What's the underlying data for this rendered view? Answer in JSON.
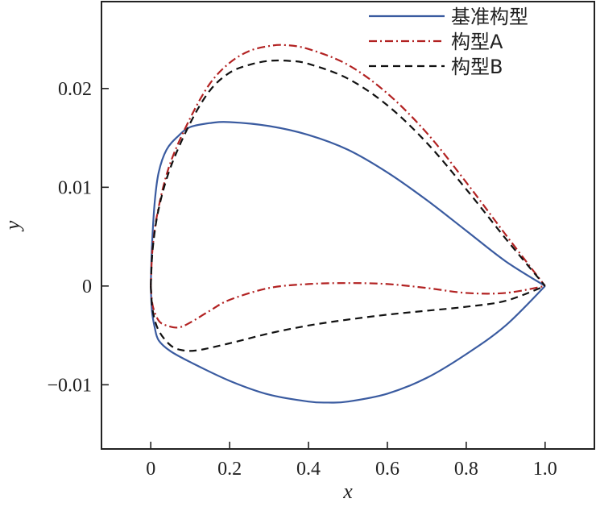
{
  "chart_data": {
    "type": "line",
    "title": "",
    "xlabel": "x",
    "ylabel": "y",
    "xlim": [
      -0.125,
      1.125
    ],
    "ylim": [
      -0.0165,
      0.0288
    ],
    "xticks": [
      0,
      0.2,
      0.4,
      0.6,
      0.8,
      1.0
    ],
    "xtick_labels": [
      "0",
      "0.2",
      "0.4",
      "0.6",
      "0.8",
      "1.0"
    ],
    "yticks": [
      -0.01,
      0,
      0.01,
      0.02
    ],
    "ytick_labels": [
      "−0.01",
      "0",
      "0.01",
      "0.02"
    ],
    "grid": false,
    "legend_position": "top-right",
    "series": [
      {
        "name": "基准构型",
        "color": "#3a5ba0",
        "dash": "solid",
        "upper": [
          [
            0,
            0
          ],
          [
            0.003,
            0.004
          ],
          [
            0.01,
            0.0085
          ],
          [
            0.02,
            0.0115
          ],
          [
            0.04,
            0.0138
          ],
          [
            0.07,
            0.0152
          ],
          [
            0.1,
            0.0161
          ],
          [
            0.15,
            0.0165
          ],
          [
            0.2,
            0.0166
          ],
          [
            0.3,
            0.0162
          ],
          [
            0.4,
            0.0153
          ],
          [
            0.5,
            0.0138
          ],
          [
            0.6,
            0.0115
          ],
          [
            0.7,
            0.0087
          ],
          [
            0.8,
            0.0056
          ],
          [
            0.9,
            0.0025
          ],
          [
            1.0,
            0
          ]
        ],
        "lower": [
          [
            0,
            0
          ],
          [
            0.003,
            -0.0025
          ],
          [
            0.01,
            -0.0042
          ],
          [
            0.02,
            -0.0055
          ],
          [
            0.05,
            -0.0066
          ],
          [
            0.1,
            -0.0077
          ],
          [
            0.2,
            -0.0096
          ],
          [
            0.3,
            -0.011
          ],
          [
            0.4,
            -0.0117
          ],
          [
            0.45,
            -0.0118
          ],
          [
            0.5,
            -0.0117
          ],
          [
            0.6,
            -0.0109
          ],
          [
            0.7,
            -0.0093
          ],
          [
            0.8,
            -0.0069
          ],
          [
            0.9,
            -0.004
          ],
          [
            1.0,
            0
          ]
        ]
      },
      {
        "name": "构型A",
        "color": "#b22222",
        "dash": "dashdot",
        "upper": [
          [
            0,
            0
          ],
          [
            0.005,
            0.004
          ],
          [
            0.02,
            0.008
          ],
          [
            0.05,
            0.0125
          ],
          [
            0.1,
            0.017
          ],
          [
            0.15,
            0.0205
          ],
          [
            0.2,
            0.0226
          ],
          [
            0.25,
            0.0238
          ],
          [
            0.3,
            0.0243
          ],
          [
            0.34,
            0.0244
          ],
          [
            0.4,
            0.024
          ],
          [
            0.5,
            0.0224
          ],
          [
            0.6,
            0.0195
          ],
          [
            0.7,
            0.0155
          ],
          [
            0.8,
            0.0105
          ],
          [
            0.9,
            0.0052
          ],
          [
            1.0,
            0
          ]
        ],
        "lower": [
          [
            0,
            0
          ],
          [
            0.005,
            -0.002
          ],
          [
            0.02,
            -0.0035
          ],
          [
            0.04,
            -0.004
          ],
          [
            0.07,
            -0.0042
          ],
          [
            0.1,
            -0.0037
          ],
          [
            0.15,
            -0.0025
          ],
          [
            0.2,
            -0.0014
          ],
          [
            0.3,
            -0.0002
          ],
          [
            0.4,
            0.0002
          ],
          [
            0.5,
            0.0003
          ],
          [
            0.6,
            0.0002
          ],
          [
            0.7,
            -0.0002
          ],
          [
            0.8,
            -0.0007
          ],
          [
            0.9,
            -0.0007
          ],
          [
            1.0,
            0
          ]
        ]
      },
      {
        "name": "构型B",
        "color": "#111111",
        "dash": "dashed",
        "upper": [
          [
            0,
            0
          ],
          [
            0.005,
            0.0038
          ],
          [
            0.02,
            0.0078
          ],
          [
            0.05,
            0.012
          ],
          [
            0.1,
            0.0165
          ],
          [
            0.15,
            0.0198
          ],
          [
            0.2,
            0.0216
          ],
          [
            0.25,
            0.0224
          ],
          [
            0.3,
            0.0228
          ],
          [
            0.35,
            0.0228
          ],
          [
            0.4,
            0.0225
          ],
          [
            0.5,
            0.021
          ],
          [
            0.6,
            0.0183
          ],
          [
            0.7,
            0.0145
          ],
          [
            0.8,
            0.0098
          ],
          [
            0.9,
            0.0048
          ],
          [
            1.0,
            0
          ]
        ],
        "lower": [
          [
            0,
            0
          ],
          [
            0.005,
            -0.0025
          ],
          [
            0.02,
            -0.0045
          ],
          [
            0.05,
            -0.006
          ],
          [
            0.08,
            -0.0065
          ],
          [
            0.12,
            -0.0065
          ],
          [
            0.2,
            -0.0058
          ],
          [
            0.3,
            -0.0048
          ],
          [
            0.4,
            -0.004
          ],
          [
            0.5,
            -0.0034
          ],
          [
            0.6,
            -0.0029
          ],
          [
            0.7,
            -0.0025
          ],
          [
            0.8,
            -0.0021
          ],
          [
            0.9,
            -0.0015
          ],
          [
            1.0,
            0
          ]
        ]
      }
    ]
  }
}
